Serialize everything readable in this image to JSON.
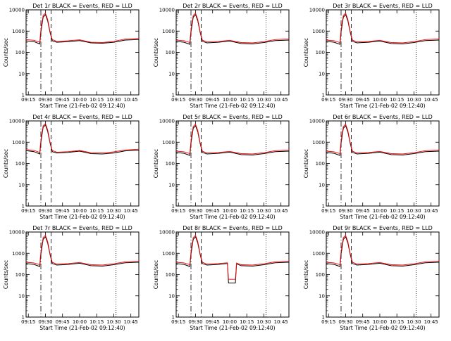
{
  "chart_data": {
    "type": "line",
    "xlabel": "Start Time (21-Feb-02 09:12:40)",
    "ylabel": "Counts/sec",
    "ylim": [
      1,
      10000
    ],
    "yscale": "log",
    "xlim": [
      "09:13",
      "10:52"
    ],
    "x_tick_labels": [
      "09:15",
      "09:30",
      "09:45",
      "10:00",
      "10:15",
      "10:30",
      "10:45"
    ],
    "y_tick_labels": [
      "1",
      "10",
      "100",
      "1000",
      "10000"
    ],
    "markers": {
      "dash_dot": "09:26",
      "dashed": "09:35",
      "dotted": "10:32"
    },
    "colors": {
      "events": "#000000",
      "lld": "#ff0000"
    },
    "panels": [
      {
        "title": "Det 1r BLACK = Events, RED = LLD",
        "x": [
          "09:13",
          "09:20",
          "09:25",
          "09:26",
          "09:28",
          "09:30",
          "09:32",
          "09:34",
          "09:36",
          "09:40",
          "09:50",
          "10:00",
          "10:10",
          "10:20",
          "10:30",
          "10:40",
          "10:52"
        ],
        "series": [
          {
            "name": "Events",
            "values": [
              350,
              320,
              250,
              900,
              4500,
              6000,
              3000,
              900,
              350,
              300,
              320,
              360,
              280,
              270,
              300,
              380,
              400
            ]
          },
          {
            "name": "LLD",
            "values": [
              400,
              370,
              300,
              1200,
              5500,
              7000,
              3500,
              1000,
              400,
              330,
              350,
              390,
              300,
              290,
              330,
              420,
              450
            ]
          }
        ]
      },
      {
        "title": "Det 2r BLACK = Events, RED = LLD",
        "x": [
          "09:13",
          "09:20",
          "09:25",
          "09:26",
          "09:28",
          "09:30",
          "09:32",
          "09:34",
          "09:36",
          "09:40",
          "09:50",
          "10:00",
          "10:10",
          "10:20",
          "10:30",
          "10:40",
          "10:52"
        ],
        "series": [
          {
            "name": "Events",
            "values": [
              330,
              300,
              240,
              900,
              4500,
              6000,
              3000,
              900,
              330,
              280,
              300,
              340,
              260,
              250,
              290,
              360,
              380
            ]
          },
          {
            "name": "LLD",
            "values": [
              380,
              350,
              290,
              1200,
              5500,
              7000,
              3500,
              1000,
              380,
              310,
              330,
              370,
              290,
              280,
              320,
              400,
              430
            ]
          }
        ]
      },
      {
        "title": "Det 3r BLACK = Events, RED = LLD",
        "x": [
          "09:13",
          "09:20",
          "09:25",
          "09:26",
          "09:28",
          "09:30",
          "09:32",
          "09:34",
          "09:36",
          "09:40",
          "09:50",
          "10:00",
          "10:10",
          "10:20",
          "10:30",
          "10:40",
          "10:52"
        ],
        "series": [
          {
            "name": "Events",
            "values": [
              330,
              300,
              240,
              900,
              4500,
              6000,
              3000,
              900,
              330,
              280,
              300,
              340,
              260,
              250,
              290,
              360,
              380
            ]
          },
          {
            "name": "LLD",
            "values": [
              380,
              350,
              290,
              1200,
              5500,
              7000,
              3500,
              1000,
              380,
              310,
              330,
              370,
              290,
              280,
              320,
              400,
              430
            ]
          }
        ]
      },
      {
        "title": "Det 4r BLACK = Events, RED = LLD",
        "x": [
          "09:13",
          "09:20",
          "09:25",
          "09:26",
          "09:28",
          "09:30",
          "09:32",
          "09:34",
          "09:36",
          "09:40",
          "09:50",
          "10:00",
          "10:10",
          "10:20",
          "10:30",
          "10:40",
          "10:52"
        ],
        "series": [
          {
            "name": "Events",
            "values": [
              400,
              360,
              280,
              1000,
              5000,
              6500,
              3200,
              950,
              360,
              310,
              330,
              380,
              290,
              280,
              310,
              390,
              420
            ]
          },
          {
            "name": "LLD",
            "values": [
              450,
              410,
              330,
              1300,
              6000,
              7500,
              3800,
              1050,
              410,
              340,
              360,
              410,
              320,
              310,
              350,
              430,
              470
            ]
          }
        ]
      },
      {
        "title": "Det 5r BLACK = Events, RED = LLD",
        "x": [
          "09:13",
          "09:20",
          "09:25",
          "09:26",
          "09:28",
          "09:30",
          "09:32",
          "09:34",
          "09:36",
          "09:40",
          "09:50",
          "10:00",
          "10:10",
          "10:20",
          "10:30",
          "10:40",
          "10:52"
        ],
        "series": [
          {
            "name": "Events",
            "values": [
              330,
              300,
              240,
              900,
              4500,
              6000,
              3000,
              900,
              330,
              280,
              300,
              340,
              260,
              250,
              290,
              360,
              380
            ]
          },
          {
            "name": "LLD",
            "values": [
              380,
              350,
              290,
              1200,
              5500,
              7000,
              3500,
              1000,
              380,
              310,
              330,
              370,
              290,
              280,
              320,
              400,
              430
            ]
          }
        ]
      },
      {
        "title": "Det 6r BLACK = Events, RED = LLD",
        "x": [
          "09:13",
          "09:20",
          "09:25",
          "09:26",
          "09:28",
          "09:30",
          "09:32",
          "09:34",
          "09:36",
          "09:40",
          "09:50",
          "10:00",
          "10:10",
          "10:20",
          "10:30",
          "10:40",
          "10:52"
        ],
        "series": [
          {
            "name": "Events",
            "values": [
              330,
              300,
              240,
              900,
              4500,
              6000,
              3000,
              900,
              330,
              280,
              300,
              340,
              260,
              250,
              290,
              360,
              380
            ]
          },
          {
            "name": "LLD",
            "values": [
              380,
              350,
              290,
              1200,
              5500,
              7000,
              3500,
              1000,
              380,
              310,
              330,
              370,
              290,
              280,
              320,
              400,
              430
            ]
          }
        ]
      },
      {
        "title": "Det 7r BLACK = Events, RED = LLD",
        "x": [
          "09:13",
          "09:20",
          "09:25",
          "09:26",
          "09:28",
          "09:30",
          "09:32",
          "09:34",
          "09:36",
          "09:40",
          "09:50",
          "10:00",
          "10:10",
          "10:20",
          "10:30",
          "10:40",
          "10:52"
        ],
        "series": [
          {
            "name": "Events",
            "values": [
              330,
              300,
              240,
              900,
              4500,
              6000,
              3000,
              900,
              330,
              280,
              300,
              340,
              260,
              250,
              290,
              360,
              380
            ]
          },
          {
            "name": "LLD",
            "values": [
              380,
              350,
              290,
              1200,
              5500,
              7000,
              3500,
              1000,
              380,
              310,
              330,
              370,
              290,
              280,
              320,
              400,
              430
            ]
          }
        ]
      },
      {
        "title": "Det 8r BLACK = Events, RED = LLD",
        "x": [
          "09:13",
          "09:20",
          "09:25",
          "09:26",
          "09:28",
          "09:30",
          "09:32",
          "09:34",
          "09:36",
          "09:40",
          "09:50",
          "09:58",
          "09:59",
          "10:05",
          "10:06",
          "10:10",
          "10:20",
          "10:30",
          "10:40",
          "10:52"
        ],
        "series": [
          {
            "name": "Events",
            "values": [
              330,
              300,
              240,
              900,
              4500,
              6000,
              3000,
              900,
              330,
              280,
              300,
              330,
              40,
              40,
              320,
              260,
              250,
              290,
              360,
              380
            ]
          },
          {
            "name": "LLD",
            "values": [
              380,
              350,
              290,
              1200,
              5500,
              7000,
              3500,
              1000,
              380,
              310,
              330,
              360,
              60,
              60,
              350,
              290,
              280,
              320,
              400,
              430
            ]
          }
        ]
      },
      {
        "title": "Det 9r BLACK = Events, RED = LLD",
        "x": [
          "09:13",
          "09:20",
          "09:25",
          "09:26",
          "09:28",
          "09:30",
          "09:32",
          "09:34",
          "09:36",
          "09:40",
          "09:50",
          "10:00",
          "10:10",
          "10:20",
          "10:30",
          "10:40",
          "10:52"
        ],
        "series": [
          {
            "name": "Events",
            "values": [
              330,
              300,
              240,
              900,
              4500,
              6000,
              3000,
              900,
              330,
              280,
              300,
              340,
              260,
              250,
              290,
              360,
              380
            ]
          },
          {
            "name": "LLD",
            "values": [
              380,
              350,
              290,
              1200,
              5500,
              7000,
              3500,
              1000,
              380,
              310,
              330,
              370,
              290,
              280,
              320,
              400,
              430
            ]
          }
        ]
      }
    ]
  }
}
